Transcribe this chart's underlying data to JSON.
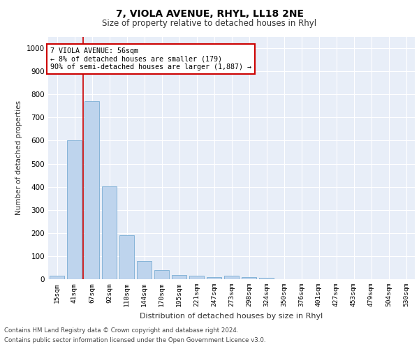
{
  "title1": "7, VIOLA AVENUE, RHYL, LL18 2NE",
  "title2": "Size of property relative to detached houses in Rhyl",
  "xlabel": "Distribution of detached houses by size in Rhyl",
  "ylabel": "Number of detached properties",
  "categories": [
    "15sqm",
    "41sqm",
    "67sqm",
    "92sqm",
    "118sqm",
    "144sqm",
    "170sqm",
    "195sqm",
    "221sqm",
    "247sqm",
    "273sqm",
    "298sqm",
    "324sqm",
    "350sqm",
    "376sqm",
    "401sqm",
    "427sqm",
    "453sqm",
    "479sqm",
    "504sqm",
    "530sqm"
  ],
  "values": [
    15,
    600,
    770,
    403,
    190,
    78,
    40,
    18,
    16,
    10,
    15,
    9,
    5,
    0,
    0,
    0,
    0,
    0,
    0,
    0,
    0
  ],
  "bar_color": "#bed4ed",
  "bar_edge_color": "#7aadd4",
  "vline_x": 1.5,
  "vline_color": "#cc0000",
  "annotation_title": "7 VIOLA AVENUE: 56sqm",
  "annotation_line1": "← 8% of detached houses are smaller (179)",
  "annotation_line2": "90% of semi-detached houses are larger (1,887) →",
  "annotation_box_color": "#cc0000",
  "ylim": [
    0,
    1050
  ],
  "yticks": [
    0,
    100,
    200,
    300,
    400,
    500,
    600,
    700,
    800,
    900,
    1000
  ],
  "footnote1": "Contains HM Land Registry data © Crown copyright and database right 2024.",
  "footnote2": "Contains public sector information licensed under the Open Government Licence v3.0.",
  "plot_bg_color": "#e8eef8"
}
